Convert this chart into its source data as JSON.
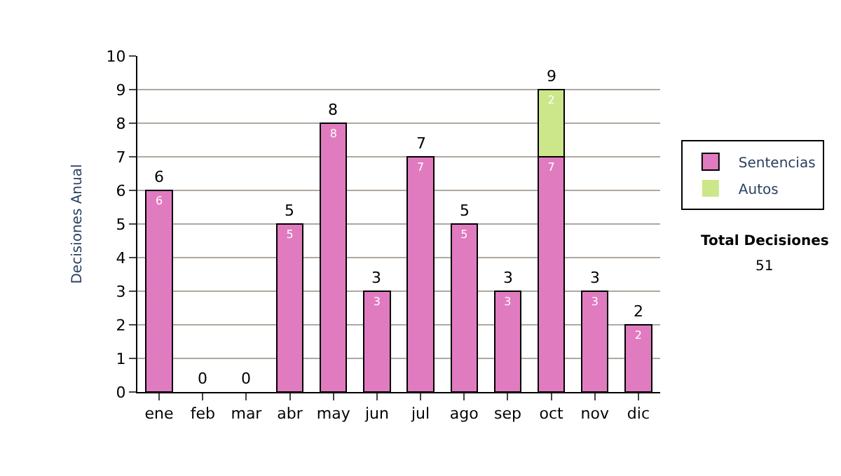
{
  "chart_data": {
    "type": "bar",
    "stacked": true,
    "ylabel": "Decisiones Anual",
    "categories": [
      "ene",
      "feb",
      "mar",
      "abr",
      "may",
      "jun",
      "jul",
      "ago",
      "sep",
      "oct",
      "nov",
      "dic"
    ],
    "series": [
      {
        "name": "Sentencias",
        "color": "#e07bc0",
        "values": [
          6,
          0,
          0,
          5,
          8,
          3,
          7,
          5,
          3,
          7,
          3,
          2
        ],
        "value_labels": [
          "6",
          null,
          null,
          "5",
          "8",
          "3",
          "7",
          "5",
          "3",
          "7",
          "3",
          "2"
        ]
      },
      {
        "name": "Autos",
        "color": "#cce68a",
        "values": [
          0,
          0,
          0,
          0,
          0,
          0,
          0,
          0,
          0,
          2,
          0,
          0
        ],
        "value_labels": [
          null,
          null,
          null,
          null,
          null,
          null,
          null,
          null,
          null,
          "2",
          null,
          null
        ]
      }
    ],
    "totals": [
      "6",
      "0",
      "0",
      "5",
      "8",
      "3",
      "7",
      "5",
      "3",
      "9",
      "3",
      "2"
    ],
    "ylim": [
      0,
      10
    ],
    "yticks": [
      0,
      1,
      2,
      3,
      4,
      5,
      6,
      7,
      8,
      9,
      10
    ],
    "grid": "y",
    "legend": "right",
    "annotations": [
      "Total Decisiones",
      "51"
    ]
  }
}
